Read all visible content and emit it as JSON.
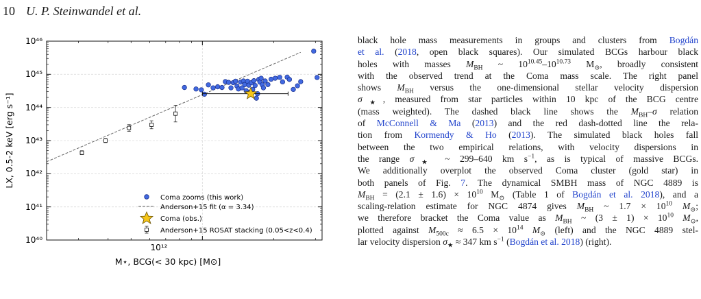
{
  "header": {
    "page_number": "10",
    "authors": "U. P. Steinwandel et al."
  },
  "figure": {
    "chart_data": {
      "type": "scatter",
      "title": "",
      "xlabel": "M⋆, BCG(< 30 kpc) [M⊙]",
      "ylabel": "LX, 0.5-2 keV [erg s⁻¹]",
      "xscale": "log",
      "yscale": "log",
      "xlim": [
        220000000000.0,
        3200000000000.0
      ],
      "ylim": [
        1e+40,
        1e+46
      ],
      "x_tick_labels": [
        "10¹²"
      ],
      "y_tick_labels": [
        "10⁴⁰",
        "10⁴¹",
        "10⁴²",
        "10⁴³",
        "10⁴⁴",
        "10⁴⁵",
        "10⁴⁶"
      ],
      "grid": true,
      "legend_placement": "lower-right",
      "legend": [
        {
          "label": "Coma zooms (this work)",
          "marker": "blue-circle"
        },
        {
          "label": "Anderson+15 fit (α = 3.34)",
          "marker": "dashed-line"
        },
        {
          "label": "Coma (obs.)",
          "marker": "gold-star"
        },
        {
          "label": "Anderson+15 ROSAT stacking (0.05<z<0.4)",
          "marker": "open-square-errorbar"
        }
      ],
      "series": [
        {
          "name": "Coma zooms (this work)",
          "points": [
            [
              840000000000.0,
              4e+44
            ],
            [
              940000000000.0,
              3.6e+44
            ],
            [
              990000000000.0,
              3.4e+44
            ],
            [
              1020000000000.0,
              2.5e+44
            ],
            [
              1060000000000.0,
              4.8e+44
            ],
            [
              1110000000000.0,
              3.9e+44
            ],
            [
              1160000000000.0,
              4.2e+44
            ],
            [
              1210000000000.0,
              4e+44
            ],
            [
              1250000000000.0,
              6e+44
            ],
            [
              1290000000000.0,
              5.7e+44
            ],
            [
              1320000000000.0,
              3.9e+44
            ],
            [
              1350000000000.0,
              5.6e+44
            ],
            [
              1380000000000.0,
              6.2e+44
            ],
            [
              1400000000000.0,
              4.4e+44
            ],
            [
              1420000000000.0,
              3.6e+44
            ],
            [
              1450000000000.0,
              5.8e+44
            ],
            [
              1470000000000.0,
              3.9e+44
            ],
            [
              1490000000000.0,
              6.3e+44
            ],
            [
              1510000000000.0,
              4.9e+44
            ],
            [
              1530000000000.0,
              3.2e+44
            ],
            [
              1550000000000.0,
              6.2e+44
            ],
            [
              1570000000000.0,
              4.7e+44
            ],
            [
              1590000000000.0,
              2.9e+44
            ],
            [
              1610000000000.0,
              5.6e+44
            ],
            [
              1630000000000.0,
              3.5e+44
            ],
            [
              1650000000000.0,
              6.4e+44
            ],
            [
              1670000000000.0,
              4.6e+44
            ],
            [
              1690000000000.0,
              1.9e+44
            ],
            [
              1710000000000.0,
              2.6e+44
            ],
            [
              1730000000000.0,
              7e+44
            ],
            [
              1750000000000.0,
              5.8e+44
            ],
            [
              1770000000000.0,
              7.6e+44
            ],
            [
              1790000000000.0,
              4.8e+44
            ],
            [
              1810000000000.0,
              3.9e+44
            ],
            [
              1840000000000.0,
              6.3e+44
            ],
            [
              1890000000000.0,
              4.9e+44
            ],
            [
              1950000000000.0,
              7.1e+44
            ],
            [
              2030000000000.0,
              7.6e+44
            ],
            [
              2120000000000.0,
              8.1e+44
            ],
            [
              2180000000000.0,
              5.9e+44
            ],
            [
              2280000000000.0,
              8.2e+44
            ],
            [
              2330000000000.0,
              7e+44
            ],
            [
              2420000000000.0,
              3.5e+44
            ],
            [
              2520000000000.0,
              4.5e+44
            ],
            [
              2600000000000.0,
              6e+44
            ],
            [
              2950000000000.0,
              5e+45
            ],
            [
              3050000000000.0,
              8e+44
            ]
          ]
        },
        {
          "name": "Anderson+15 ROSAT stacking (0.05<z<0.4)",
          "points": [
            [
              310000000000.0,
              4.3e+42
            ],
            [
              390000000000.0,
              1e+43
            ],
            [
              490000000000.0,
              2.4e+43
            ],
            [
              610000000000.0,
              3e+43
            ],
            [
              770000000000.0,
              6.5e+43
            ]
          ],
          "yerr_dex": [
            0.06,
            0.06,
            0.1,
            0.12,
            0.25
          ]
        },
        {
          "name": "Coma (obs.)",
          "points": [
            [
              1600000000000.0,
              2.6e+44
            ]
          ],
          "xerr": [
            [
              1000000000000.0,
              2300000000000.0
            ]
          ]
        },
        {
          "name": "Anderson+15 fit (α = 3.34)",
          "line": [
            [
              220000000000.0,
              2.3e+42
            ],
            [
              2600000000000.0,
              4.6e+45
            ]
          ]
        }
      ]
    }
  },
  "body_lines": [
    [
      {
        "t": "black hole mass measurements in groups and clusters from "
      },
      {
        "t": "Bogdán",
        "c": "lnk"
      }
    ],
    [
      {
        "t": "et al.",
        "c": "lnk"
      },
      {
        "t": " ("
      },
      {
        "t": "2018",
        "c": "lnk"
      },
      {
        "t": ", open black squares). Our simulated BCGs harbour black"
      }
    ],
    [
      {
        "t": "holes with masses "
      },
      {
        "t": "M",
        "c": "m"
      },
      {
        "t": "BH",
        "sub": true
      },
      {
        "t": " ~ 10"
      },
      {
        "t": "10.45",
        "sup": true
      },
      {
        "t": "–10"
      },
      {
        "t": "10.73",
        "sup": true
      },
      {
        "t": " M"
      },
      {
        "t": "⊙",
        "sub": true
      },
      {
        "t": ", broadly consistent"
      }
    ],
    [
      {
        "t": "with the observed trend at the Coma mass scale. The right panel"
      }
    ],
    [
      {
        "t": "shows "
      },
      {
        "t": "M",
        "c": "m"
      },
      {
        "t": "BH",
        "sub": true
      },
      {
        "t": " versus the one-dimensional stellar velocity dispersion"
      }
    ],
    [
      {
        "t": "σ",
        "c": "m"
      },
      {
        "t": "★",
        "sub": true
      },
      {
        "t": ", measured from star particles within 10 kpc of the BCG centre"
      }
    ],
    [
      {
        "t": "(mass weighted). The dashed black line shows the "
      },
      {
        "t": "M",
        "c": "m"
      },
      {
        "t": "BH",
        "sub": true
      },
      {
        "t": "–"
      },
      {
        "t": "σ",
        "c": "m"
      },
      {
        "t": " relation"
      }
    ],
    [
      {
        "t": "of "
      },
      {
        "t": "McConnell & Ma",
        "c": "lnk"
      },
      {
        "t": " ("
      },
      {
        "t": "2013",
        "c": "lnk"
      },
      {
        "t": ") and the red dash-dotted line the rela-"
      }
    ],
    [
      {
        "t": "tion from "
      },
      {
        "t": "Kormendy & Ho",
        "c": "lnk"
      },
      {
        "t": " ("
      },
      {
        "t": "2013",
        "c": "lnk"
      },
      {
        "t": "). The simulated black holes fall"
      }
    ],
    [
      {
        "t": "between the two empirical relations, with velocity dispersions in"
      }
    ],
    [
      {
        "t": "the range "
      },
      {
        "t": "σ",
        "c": "m"
      },
      {
        "t": "★",
        "sub": true
      },
      {
        "t": " ~ 299–640 km s"
      },
      {
        "t": "−1",
        "sup": true
      },
      {
        "t": ", as is typical of massive BCGs."
      }
    ],
    [
      {
        "t": "We additionally overplot the observed Coma cluster (gold star) in"
      }
    ],
    [
      {
        "t": "both panels of Fig. "
      },
      {
        "t": "7",
        "c": "lnk"
      },
      {
        "t": ". The dynamical SMBH mass of NGC 4889 is"
      }
    ],
    [
      {
        "t": "M",
        "c": "m"
      },
      {
        "t": "BH",
        "sub": true
      },
      {
        "t": " = (2.1 ± 1.6) × 10"
      },
      {
        "t": "10",
        "sup": true
      },
      {
        "t": " M"
      },
      {
        "t": "⊙",
        "sub": true
      },
      {
        "t": " (Table 1 of "
      },
      {
        "t": "Bogdán et al. 2018",
        "c": "lnk"
      },
      {
        "t": "), and a"
      }
    ],
    [
      {
        "t": "scaling-relation estimate for NGC 4874 gives "
      },
      {
        "t": "M",
        "c": "m"
      },
      {
        "t": "BH",
        "sub": true
      },
      {
        "t": " ~ 1.7 × 10"
      },
      {
        "t": "10",
        "sup": true
      },
      {
        "t": " "
      },
      {
        "t": "M",
        "c": "m"
      },
      {
        "t": "⊙",
        "sub": true
      },
      {
        "t": ";"
      }
    ],
    [
      {
        "t": "we therefore bracket the Coma value as "
      },
      {
        "t": "M",
        "c": "m"
      },
      {
        "t": "BH",
        "sub": true
      },
      {
        "t": " ~ (3 ± 1) × 10"
      },
      {
        "t": "10",
        "sup": true
      },
      {
        "t": " "
      },
      {
        "t": "M",
        "c": "m"
      },
      {
        "t": "⊙",
        "sub": true
      },
      {
        "t": ","
      }
    ],
    [
      {
        "t": "plotted against "
      },
      {
        "t": "M",
        "c": "m"
      },
      {
        "t": "500c",
        "sub": true
      },
      {
        "t": " ≈ 6.5 × 10"
      },
      {
        "t": "14",
        "sup": true
      },
      {
        "t": " "
      },
      {
        "t": "M",
        "c": "m"
      },
      {
        "t": "⊙",
        "sub": true
      },
      {
        "t": " (left) and the NGC 4889 stel-"
      }
    ],
    [
      {
        "t": "lar velocity dispersion "
      },
      {
        "t": "σ",
        "c": "m"
      },
      {
        "t": "★",
        "sub": true
      },
      {
        "t": " ≈ 347 km s"
      },
      {
        "t": "−1",
        "sup": true
      },
      {
        "t": " ("
      },
      {
        "t": "Bogdán et al. 2018",
        "c": "lnk"
      },
      {
        "t": ") (right)."
      }
    ]
  ]
}
